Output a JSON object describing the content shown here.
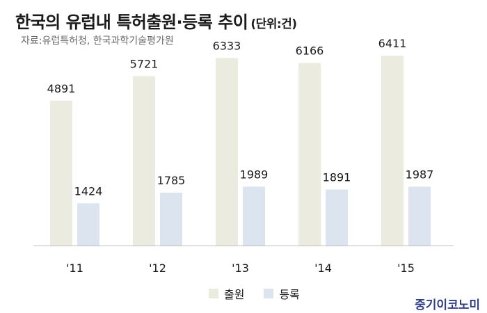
{
  "header": {
    "title": "한국의 유럽내 특허출원·등록 추이",
    "unit": "(단위:건)",
    "source": "자료:유럽특허청, 한국과학기술평가원"
  },
  "brand": "중기이코노미",
  "chart_data": {
    "type": "bar",
    "categories": [
      "'11",
      "'12",
      "'13",
      "'14",
      "'15"
    ],
    "series": [
      {
        "name": "출원",
        "values": [
          4891,
          5721,
          6333,
          6166,
          6411
        ],
        "color": "#ecebdf"
      },
      {
        "name": "등록",
        "values": [
          1424,
          1785,
          1989,
          1891,
          1987
        ],
        "color": "#dbe4ef"
      }
    ],
    "ylim": [
      0,
      7000
    ],
    "grid": false,
    "legend": "bottom-center"
  }
}
